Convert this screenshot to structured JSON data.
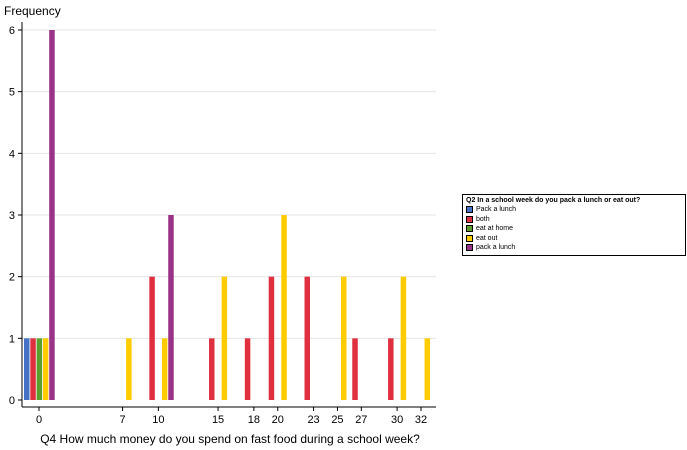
{
  "chart_data": {
    "type": "bar",
    "ylabel": "Frequency",
    "xlabel": "Q4  How much money do you spend on fast food during a school week?",
    "ylim": [
      0,
      6
    ],
    "yticks": [
      "0",
      "1",
      "2",
      "3",
      "4",
      "5",
      "6"
    ],
    "grid": true,
    "legend_position": "right",
    "legend_title": "Q2  In a school week do you pack a lunch or eat out?",
    "xtick_labels": [
      "0",
      "7",
      "10",
      "15",
      "18",
      "20",
      "23",
      "25",
      "27",
      "30",
      "32"
    ],
    "series": [
      {
        "name": "Pack a lunch",
        "color": "#4472c4"
      },
      {
        "name": "both",
        "color": "#e03040"
      },
      {
        "name": "eat at home",
        "color": "#5ba02e"
      },
      {
        "name": "eat out",
        "color": "#ffcc00"
      },
      {
        "name": "pack a lunch",
        "color": "#993388"
      }
    ],
    "bars": [
      {
        "x": 0,
        "series": 0,
        "value": 1
      },
      {
        "x": 0,
        "series": 1,
        "value": 1
      },
      {
        "x": 0,
        "series": 2,
        "value": 1
      },
      {
        "x": 0,
        "series": 3,
        "value": 1
      },
      {
        "x": 0,
        "series": 4,
        "value": 6
      },
      {
        "x": 7,
        "series": 3,
        "value": 1
      },
      {
        "x": 10,
        "series": 1,
        "value": 2
      },
      {
        "x": 10,
        "series": 3,
        "value": 1
      },
      {
        "x": 10,
        "series": 4,
        "value": 3
      },
      {
        "x": 15,
        "series": 1,
        "value": 1
      },
      {
        "x": 15,
        "series": 3,
        "value": 2
      },
      {
        "x": 18,
        "series": 1,
        "value": 1
      },
      {
        "x": 20,
        "series": 1,
        "value": 2
      },
      {
        "x": 20,
        "series": 3,
        "value": 3
      },
      {
        "x": 23,
        "series": 1,
        "value": 2
      },
      {
        "x": 25,
        "series": 3,
        "value": 2
      },
      {
        "x": 27,
        "series": 1,
        "value": 1
      },
      {
        "x": 30,
        "series": 1,
        "value": 1
      },
      {
        "x": 30,
        "series": 3,
        "value": 2
      },
      {
        "x": 32,
        "series": 3,
        "value": 1
      }
    ]
  }
}
